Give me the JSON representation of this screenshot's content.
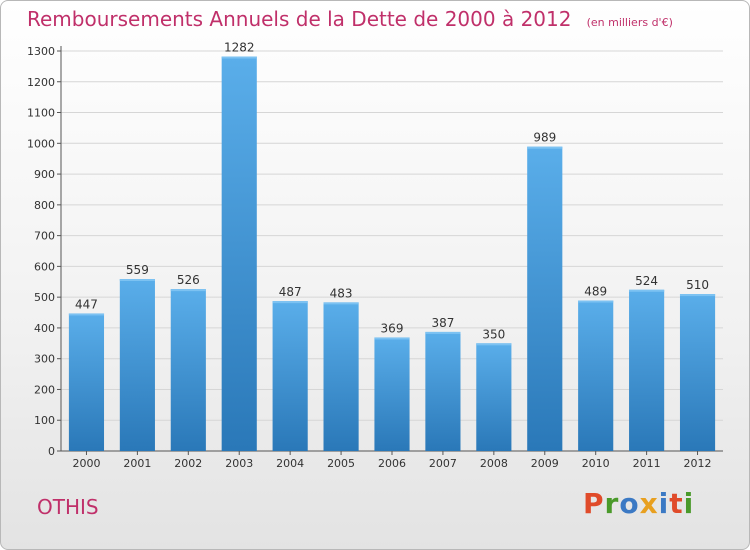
{
  "header": {
    "title": "Remboursements Annuels de la Dette de 2000 à 2012",
    "subtitle": "(en milliers d'€)"
  },
  "footer": {
    "town": "OTHIS",
    "logo_text": "Proxiti"
  },
  "colors": {
    "title": "#c0306a",
    "bar_top": "#5aaeea",
    "bar_bottom": "#2a78b8",
    "grid": "#d6d6d6",
    "logo_letters": [
      "#e04b2a",
      "#4a9a2a",
      "#3b79c4",
      "#e8a020",
      "#3b79c4",
      "#e04b2a",
      "#4a9a2a"
    ]
  },
  "chart_data": {
    "type": "bar",
    "title": "Remboursements Annuels de la Dette de 2000 à 2012",
    "subtitle": "(en milliers d'€)",
    "categories": [
      "2000",
      "2001",
      "2002",
      "2003",
      "2004",
      "2005",
      "2006",
      "2007",
      "2008",
      "2009",
      "2010",
      "2011",
      "2012"
    ],
    "values": [
      447,
      559,
      526,
      1282,
      487,
      483,
      369,
      387,
      350,
      989,
      489,
      524,
      510
    ],
    "xlabel": "",
    "ylabel": "",
    "ylim": [
      0,
      1300
    ],
    "yticks": [
      0,
      100,
      200,
      300,
      400,
      500,
      600,
      700,
      800,
      900,
      1000,
      1100,
      1200,
      1300
    ],
    "grid": true,
    "legend": "none",
    "data_labels": true
  }
}
